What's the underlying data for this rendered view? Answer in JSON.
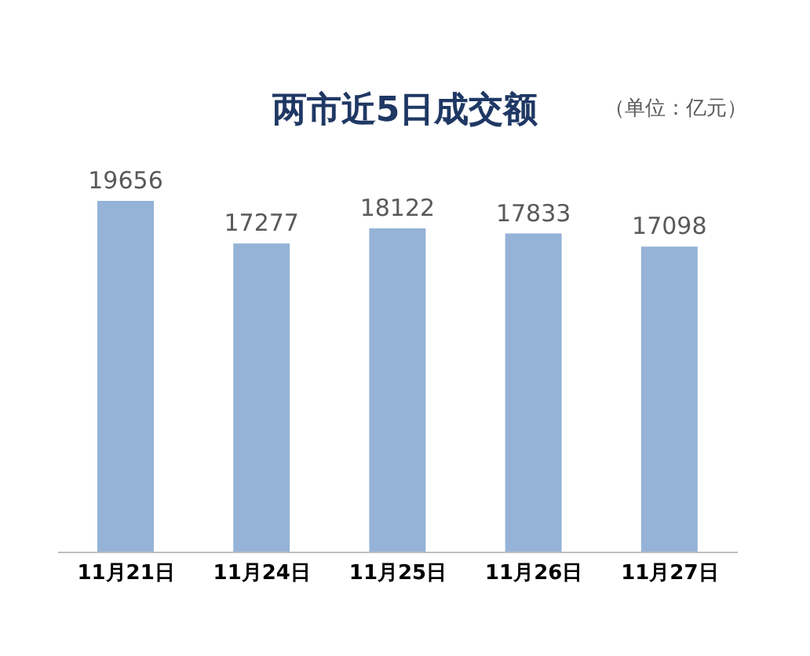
{
  "chart_data": {
    "type": "bar",
    "title": "两市近5日成交额",
    "annotations": [
      "（单位：亿元）"
    ],
    "categories": [
      "11月21日",
      "11月24日",
      "11月25日",
      "11月26日",
      "11月27日"
    ],
    "values": [
      19656,
      17277,
      18122,
      17833,
      17098
    ],
    "color": "#95b3d7",
    "data_labels": true
  }
}
